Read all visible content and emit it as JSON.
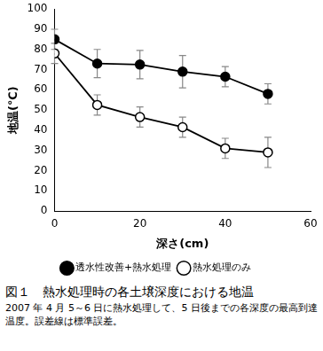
{
  "chart_data": {
    "type": "line",
    "title": "図１　熱水処理時の各土壌深度における地温",
    "subtitle": "2007 年 4 月 5～6 日に熱水処理して、5 日後までの各深度の最高到達温度。誤差線は標準誤差。",
    "x_label": "深さ(cm)",
    "y_label": "地温(℃)",
    "x": [
      0,
      10,
      20,
      30,
      40,
      50
    ],
    "series": [
      {
        "name": "透水性改善+熱水処理",
        "color": "#000000",
        "marker": "filled_circle",
        "values": [
          85,
          73,
          72.5,
          69,
          66.5,
          58
        ],
        "errors": [
          5,
          7,
          7,
          8,
          5,
          5
        ]
      },
      {
        "name": "熱水処理のみ",
        "color": "#000000",
        "marker": "open_circle",
        "values": [
          78,
          52.5,
          46.5,
          41.5,
          31,
          29
        ],
        "errors": [
          5,
          5,
          5,
          5,
          5,
          7.5
        ]
      }
    ],
    "xlim": [
      0,
      60
    ],
    "xticks": [
      0,
      20,
      40,
      60
    ],
    "ylim": [
      0,
      100
    ],
    "yticks": [
      0,
      10,
      20,
      30,
      40,
      50,
      60,
      70,
      80,
      90,
      100
    ],
    "grid": false,
    "legend": "bottom"
  }
}
